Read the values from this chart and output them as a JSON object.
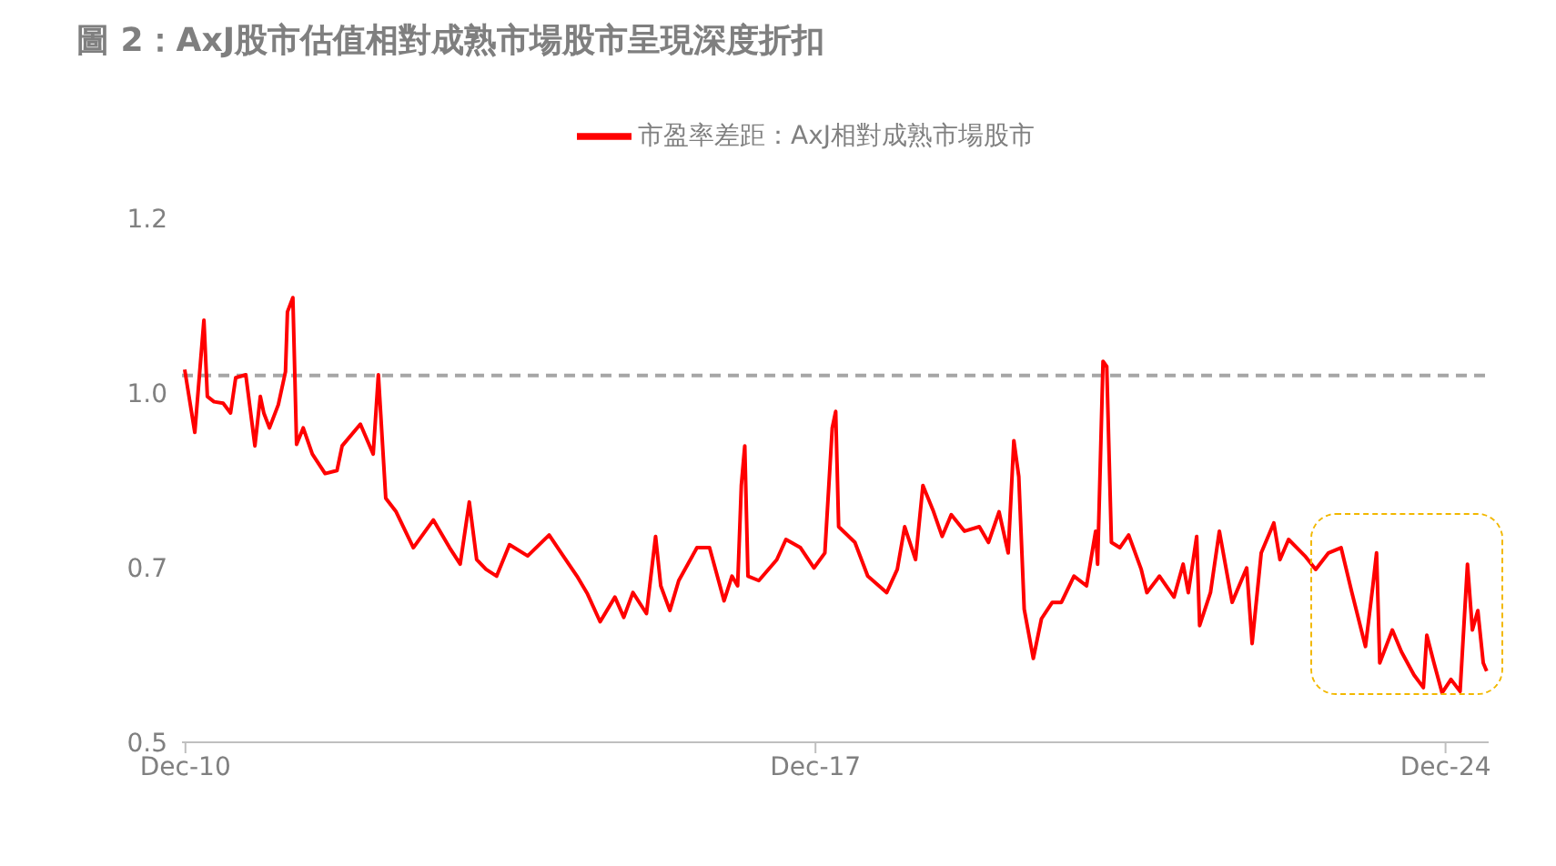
{
  "chart_data": {
    "type": "line",
    "title": "圖 2：AxJ股市估值相對成熟市場股市呈現深度折扣",
    "x": [
      "2010-11-28",
      "2011-01-08",
      "2011-02-14",
      "2011-02-28",
      "2011-03-27",
      "2011-05-03",
      "2011-06-02",
      "2011-06-23",
      "2011-08-03",
      "2011-09-09",
      "2011-10-01",
      "2011-10-15",
      "2011-11-07",
      "2011-12-13",
      "2012-01-11",
      "2012-01-19",
      "2012-02-10",
      "2012-02-25",
      "2012-03-23",
      "2012-04-29",
      "2012-06-20",
      "2012-08-07",
      "2012-08-28",
      "2012-11-10",
      "2013-01-01",
      "2013-01-22",
      "2013-02-21",
      "2013-04-04",
      "2013-06-13",
      "2013-09-02",
      "2013-11-07",
      "2013-12-20",
      "2014-01-26",
      "2014-02-25",
      "2014-04-04",
      "2014-05-17",
      "2014-07-08",
      "2014-09-20",
      "2014-12-16",
      "2015-02-03",
      "2015-04-08",
      "2015-05-21",
      "2015-07-11",
      "2015-09-09",
      "2015-10-15",
      "2015-11-21",
      "2016-01-15",
      "2016-02-21",
      "2016-03-13",
      "2016-04-19",
      "2016-05-25",
      "2016-08-07",
      "2016-09-27",
      "2016-11-25",
      "2016-12-27",
      "2017-01-19",
      "2017-02-03",
      "2017-02-17",
      "2017-03-02",
      "2017-04-15",
      "2017-06-27",
      "2017-08-03",
      "2017-10-01",
      "2017-11-25",
      "2018-01-08",
      "2018-02-07",
      "2018-02-21",
      "2018-03-05",
      "2018-05-10",
      "2018-07-01",
      "2018-09-16",
      "2018-10-29",
      "2018-11-28",
      "2019-01-11",
      "2019-02-10",
      "2019-03-23",
      "2019-04-29",
      "2019-06-05",
      "2019-07-29",
      "2019-09-27",
      "2019-11-03",
      "2019-12-16",
      "2020-01-22",
      "2020-02-14",
      "2020-03-05",
      "2020-03-27",
      "2020-05-03",
      "2020-06-05",
      "2020-07-19",
      "2020-08-25",
      "2020-10-15",
      "2020-12-05",
      "2021-01-11",
      "2021-01-19",
      "2021-02-10",
      "2021-02-25",
      "2021-03-16",
      "2021-04-19",
      "2021-05-25",
      "2021-07-15",
      "2021-08-07",
      "2021-09-27",
      "2021-11-25",
      "2022-01-01",
      "2022-01-22",
      "2022-02-25",
      "2022-03-09",
      "2022-04-22",
      "2022-05-28",
      "2022-07-19",
      "2022-09-16",
      "2022-10-08",
      "2022-11-14",
      "2023-01-04",
      "2023-01-29",
      "2023-03-05",
      "2023-05-10",
      "2023-06-23",
      "2023-08-14",
      "2023-10-04",
      "2023-11-17",
      "2024-01-11",
      "2024-02-10",
      "2024-02-25",
      "2024-03-09",
      "2024-04-29",
      "2024-06-05",
      "2024-07-26",
      "2024-09-02",
      "2024-09-16",
      "2024-10-15",
      "2024-11-17",
      "2024-12-23",
      "2025-01-29",
      "2025-02-28",
      "2025-03-20",
      "2025-04-11",
      "2025-05-03",
      "2025-05-17"
    ],
    "series": [
      {
        "name": "市盈率差距：AxJ相對成熟市場股市",
        "color": "#ff0000",
        "values": [
          0.998,
          0.914,
          1.064,
          0.962,
          0.955,
          0.953,
          0.94,
          0.987,
          0.991,
          0.896,
          0.962,
          0.94,
          0.92,
          0.951,
          0.995,
          1.075,
          1.094,
          0.898,
          0.92,
          0.885,
          0.859,
          0.863,
          0.896,
          0.925,
          0.885,
          0.991,
          0.826,
          0.808,
          0.76,
          0.797,
          0.76,
          0.738,
          0.821,
          0.744,
          0.731,
          0.722,
          0.764,
          0.749,
          0.777,
          0.753,
          0.722,
          0.698,
          0.661,
          0.694,
          0.667,
          0.7,
          0.672,
          0.775,
          0.709,
          0.676,
          0.716,
          0.76,
          0.76,
          0.689,
          0.722,
          0.709,
          0.843,
          0.896,
          0.722,
          0.716,
          0.744,
          0.771,
          0.76,
          0.733,
          0.753,
          0.92,
          0.942,
          0.788,
          0.767,
          0.722,
          0.7,
          0.731,
          0.788,
          0.744,
          0.843,
          0.81,
          0.775,
          0.804,
          0.782,
          0.788,
          0.767,
          0.808,
          0.753,
          0.903,
          0.855,
          0.678,
          0.612,
          0.665,
          0.687,
          0.687,
          0.722,
          0.709,
          0.782,
          0.738,
          1.009,
          1.002,
          0.767,
          0.76,
          0.777,
          0.731,
          0.7,
          0.722,
          0.694,
          0.738,
          0.7,
          0.775,
          0.656,
          0.7,
          0.782,
          0.687,
          0.733,
          0.632,
          0.753,
          0.793,
          0.744,
          0.771,
          0.749,
          0.731,
          0.753,
          0.76,
          0.7,
          0.628,
          0.709,
          0.753,
          0.606,
          0.65,
          0.621,
          0.59,
          0.573,
          0.643,
          0.606,
          0.566,
          0.584,
          0.568,
          0.738,
          0.65,
          0.676,
          0.606,
          0.595
        ]
      }
    ],
    "xlim": [
      "2010-11-17",
      "2025-05-25"
    ],
    "xticks": [
      {
        "value": "2010-12-01",
        "label": "Dec-10"
      },
      {
        "value": "2017-12-01",
        "label": "Dec-17"
      },
      {
        "value": "2024-12-01",
        "label": "Dec-24"
      }
    ],
    "ylim": [
      0.5,
      1.2
    ],
    "yticks": [
      0.5,
      {
        "value": 0.7333,
        "label": "0.7"
      },
      {
        "value": 0.9667,
        "label": "1.0"
      },
      1.2
    ],
    "ref_lines": [
      {
        "axis": "y",
        "value": 0.99,
        "color": "#a6a6a6",
        "line_style": "dashed"
      }
    ],
    "legend": "top",
    "grid": false,
    "marker": "none",
    "line_style": "solid"
  }
}
